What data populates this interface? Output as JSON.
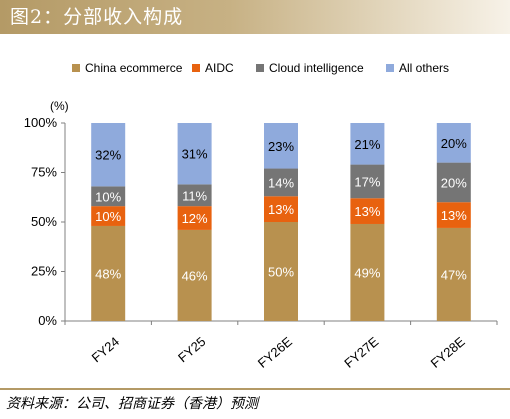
{
  "title": "图2：分部收入构成",
  "source": "资料来源：公司、招商证券（香港）预测",
  "chart_data": {
    "type": "bar",
    "stacked": true,
    "ylabel": "(%)",
    "ylim": [
      0,
      100
    ],
    "yticks": [
      "0%",
      "25%",
      "50%",
      "75%",
      "100%"
    ],
    "legend_position": "top",
    "categories": [
      "FY24",
      "FY25",
      "FY26E",
      "FY27E",
      "FY28E"
    ],
    "series": [
      {
        "name": "China ecommerce",
        "color": "#b8914f",
        "values": [
          48,
          46,
          50,
          49,
          47
        ],
        "labels": [
          "48%",
          "46%",
          "50%",
          "49%",
          "47%"
        ]
      },
      {
        "name": "AIDC",
        "color": "#e8620f",
        "values": [
          10,
          12,
          13,
          13,
          13
        ],
        "labels": [
          "10%",
          "12%",
          "13%",
          "13%",
          "13%"
        ]
      },
      {
        "name": "Cloud intelligence",
        "color": "#757575",
        "values": [
          10,
          11,
          14,
          17,
          20
        ],
        "labels": [
          "10%",
          "11%",
          "14%",
          "17%",
          "20%"
        ]
      },
      {
        "name": "All others",
        "color": "#8faadc",
        "values": [
          32,
          31,
          23,
          21,
          20
        ],
        "labels": [
          "32%",
          "31%",
          "23%",
          "21%",
          "20%"
        ]
      }
    ]
  }
}
